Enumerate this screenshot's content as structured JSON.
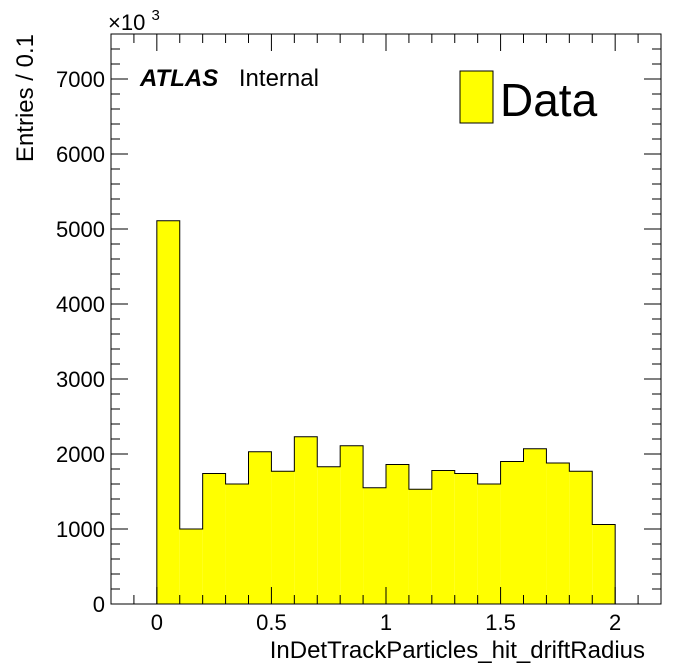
{
  "chart_data": {
    "type": "bar",
    "histogram": true,
    "bin_width": 0.1,
    "bin_edges_start": 0,
    "xlabel": "InDetTrackParticles_hit_driftRadius",
    "ylabel": "Entries / 0.1",
    "y_multiplier_label": "×10",
    "y_multiplier_exponent": "3",
    "xlim": [
      -0.2,
      2.2
    ],
    "ylim": [
      0,
      7600
    ],
    "x_ticks": [
      "0",
      "0.5",
      "1",
      "1.5",
      "2"
    ],
    "x_tick_values": [
      0,
      0.5,
      1,
      1.5,
      2
    ],
    "y_ticks": [
      "0",
      "1000",
      "2000",
      "3000",
      "4000",
      "5000",
      "6000",
      "7000"
    ],
    "y_tick_values": [
      0,
      1000,
      2000,
      3000,
      4000,
      5000,
      6000,
      7000
    ],
    "series": [
      {
        "name": "Data",
        "color": "#ffff00",
        "edge_color": "#000000",
        "values": [
          5110,
          1000,
          1740,
          1600,
          2030,
          1770,
          2230,
          1830,
          2110,
          1550,
          1860,
          1530,
          1780,
          1740,
          1600,
          1900,
          2070,
          1880,
          1770,
          1060
        ]
      }
    ],
    "annotation_bold": "ATLAS",
    "annotation_text": "Internal",
    "legend_position": "top-right",
    "grid": false
  }
}
